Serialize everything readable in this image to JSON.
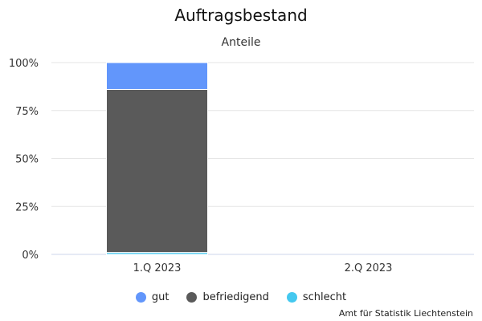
{
  "chart_data": {
    "type": "bar",
    "stacked": true,
    "title": "Auftragsbestand",
    "subtitle": "Anteile",
    "categories": [
      "1.Q 2023",
      "2.Q 2023"
    ],
    "yticks": [
      "0%",
      "25%",
      "50%",
      "75%",
      "100%"
    ],
    "ylim": [
      0,
      100
    ],
    "grid": true,
    "legend_position": "bottom",
    "series": [
      {
        "name": "schlecht",
        "color": "#44c8ef",
        "values": [
          1,
          null
        ]
      },
      {
        "name": "befriedigend",
        "color": "#5a5a5a",
        "values": [
          85,
          null
        ]
      },
      {
        "name": "gut",
        "color": "#6296fb",
        "values": [
          14,
          null
        ]
      }
    ],
    "legend_order": [
      "gut",
      "befriedigend",
      "schlecht"
    ],
    "credit": "Amt für Statistik Liechtenstein"
  }
}
